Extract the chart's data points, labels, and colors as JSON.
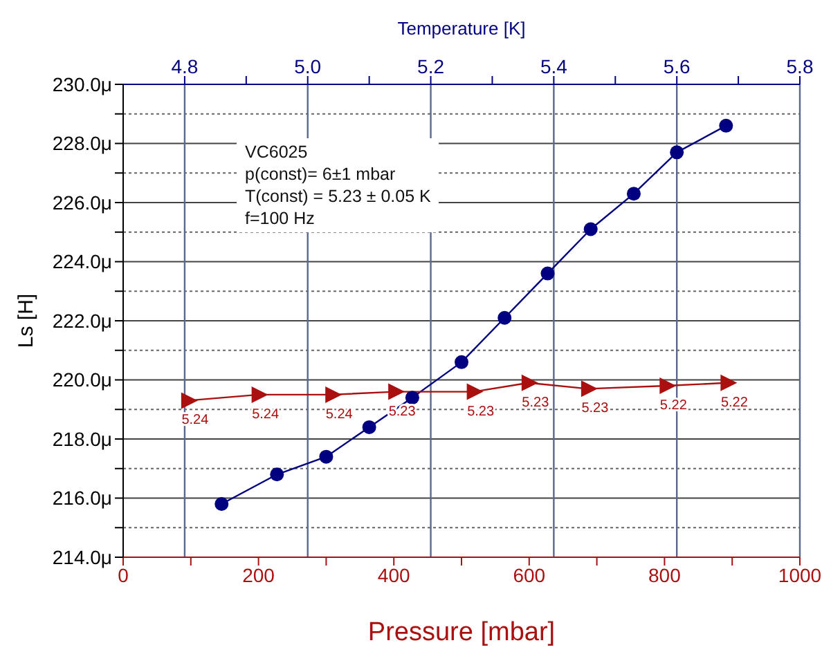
{
  "chart_data": {
    "type": "line",
    "xlabel": "Pressure [mbar]",
    "x2label": "Temperature [K]",
    "ylabel": "Ls [H]",
    "annotations": [
      "VC6025",
      "p(const)= 6±1 mbar",
      "T(const) = 5.23 ± 0.05 K",
      "f=100 Hz",
      {
        "text": "5.24",
        "x": 96,
        "y": 219.3
      },
      {
        "text": "5.24",
        "x": 200,
        "y": 219.5
      },
      {
        "text": "5.24",
        "x": 309,
        "y": 219.5
      },
      {
        "text": "5.23",
        "x": 402,
        "y": 219.6
      },
      {
        "text": "5.23",
        "x": 518,
        "y": 219.6
      },
      {
        "text": "5.23",
        "x": 599,
        "y": 219.9
      },
      {
        "text": "5.23",
        "x": 687,
        "y": 219.7
      },
      {
        "text": "5.22",
        "x": 803,
        "y": 219.8
      },
      {
        "text": "5.22",
        "x": 893,
        "y": 219.9
      }
    ],
    "xlim": [
      0,
      1000
    ],
    "xticks": [
      0,
      {
        "value": 100,
        "label": null
      },
      200,
      {
        "value": 300,
        "label": null
      },
      400,
      {
        "value": 500,
        "label": null
      },
      600,
      {
        "value": 700,
        "label": null
      },
      800,
      {
        "value": 900,
        "label": null
      },
      1000
    ],
    "x2lim": [
      4.7,
      5.8
    ],
    "x2ticks": [
      {
        "value": 4.8,
        "label": "4.8"
      },
      {
        "value": 4.9,
        "label": null
      },
      {
        "value": 5.0,
        "label": "5.0"
      },
      {
        "value": 5.1,
        "label": null
      },
      {
        "value": 5.2,
        "label": "5.2"
      },
      {
        "value": 5.3,
        "label": null
      },
      {
        "value": 5.4,
        "label": "5.4"
      },
      {
        "value": 5.5,
        "label": null
      },
      {
        "value": 5.6,
        "label": "5.6"
      },
      {
        "value": 5.7,
        "label": null
      },
      {
        "value": 5.8,
        "label": "5.8"
      }
    ],
    "ylim": [
      214,
      230
    ],
    "yticks": [
      {
        "value": 214,
        "label": "214.0μ"
      },
      {
        "value": 215,
        "label": null
      },
      {
        "value": 216,
        "label": "216.0μ"
      },
      {
        "value": 217,
        "label": null
      },
      {
        "value": 218,
        "label": "218.0μ"
      },
      {
        "value": 219,
        "label": null
      },
      {
        "value": 220,
        "label": "220.0μ"
      },
      {
        "value": 221,
        "label": null
      },
      {
        "value": 222,
        "label": "222.0μ"
      },
      {
        "value": 223,
        "label": null
      },
      {
        "value": 224,
        "label": "224.0μ"
      },
      {
        "value": 225,
        "label": null
      },
      {
        "value": 226,
        "label": "226.0μ"
      },
      {
        "value": 227,
        "label": null
      },
      {
        "value": 228,
        "label": "228.0μ"
      },
      {
        "value": 229,
        "label": null
      },
      {
        "value": 230,
        "label": "230.0μ"
      }
    ],
    "grid": true,
    "line_style": "solid",
    "series": [
      {
        "color": "#000080",
        "marker": "circle",
        "axis": "x2",
        "x": [
          4.86,
          4.95,
          5.03,
          5.1,
          5.17,
          5.25,
          5.32,
          5.39,
          5.46,
          5.53,
          5.6,
          5.68
        ],
        "values": [
          215.8,
          216.8,
          217.4,
          218.4,
          219.4,
          220.6,
          222.1,
          223.6,
          225.1,
          226.3,
          227.7,
          228.6
        ]
      },
      {
        "color": "#aa1010",
        "marker": "triangle",
        "x": [
          96,
          200,
          309,
          402,
          518,
          599,
          687,
          803,
          893
        ],
        "values": [
          219.3,
          219.5,
          219.5,
          219.6,
          219.6,
          219.9,
          219.7,
          219.8,
          219.9
        ]
      }
    ]
  }
}
